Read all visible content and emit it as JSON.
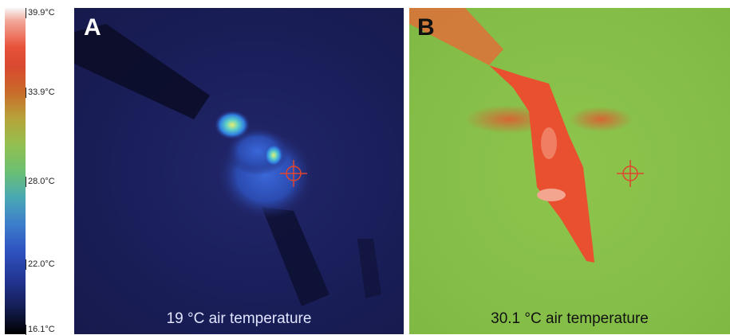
{
  "scale": {
    "ticks": [
      "39.9°C",
      "33.9°C",
      "28.0°C",
      "22.0°C",
      "16.1°C"
    ]
  },
  "panel_a": {
    "letter": "A",
    "caption": "19 °C air temperature"
  },
  "panel_b": {
    "letter": "B",
    "caption": "30.1 °C air temperature"
  },
  "colors": {
    "cold_background": "#1b1f5c",
    "warm_background": "#86bf48",
    "hot_subject": "#e8502f",
    "crosshair": "#e0452e"
  }
}
